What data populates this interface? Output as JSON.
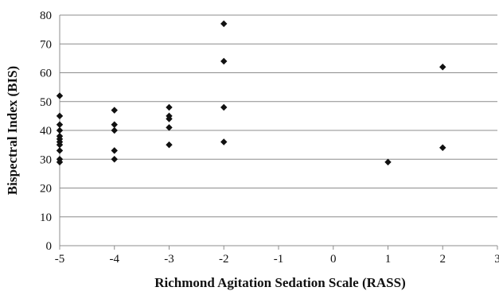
{
  "chart_data": {
    "type": "scatter",
    "title": "",
    "xlabel": "Richmond Agitation Sedation Scale (RASS)",
    "ylabel": "Bispectral Index (BIS)",
    "xlim": [
      -5,
      3
    ],
    "ylim": [
      0,
      80
    ],
    "xticks": [
      "-5",
      "-4",
      "-3",
      "-2",
      "-1",
      "0",
      "1",
      "2",
      "3"
    ],
    "yticks": [
      "0",
      "10",
      "20",
      "30",
      "40",
      "50",
      "60",
      "70",
      "80"
    ],
    "grid": "horizontal",
    "legend": "none",
    "marker": "diamond",
    "marker_color": "#111111",
    "points": [
      {
        "x": -5,
        "y": 52
      },
      {
        "x": -5,
        "y": 45
      },
      {
        "x": -5,
        "y": 42
      },
      {
        "x": -5,
        "y": 40
      },
      {
        "x": -5,
        "y": 38
      },
      {
        "x": -5,
        "y": 37
      },
      {
        "x": -5,
        "y": 36
      },
      {
        "x": -5,
        "y": 35
      },
      {
        "x": -5,
        "y": 33
      },
      {
        "x": -5,
        "y": 30
      },
      {
        "x": -5,
        "y": 29
      },
      {
        "x": -4,
        "y": 47
      },
      {
        "x": -4,
        "y": 42
      },
      {
        "x": -4,
        "y": 40
      },
      {
        "x": -4,
        "y": 33
      },
      {
        "x": -4,
        "y": 30
      },
      {
        "x": -3,
        "y": 48
      },
      {
        "x": -3,
        "y": 45
      },
      {
        "x": -3,
        "y": 44
      },
      {
        "x": -3,
        "y": 41
      },
      {
        "x": -3,
        "y": 35
      },
      {
        "x": -2,
        "y": 77
      },
      {
        "x": -2,
        "y": 64
      },
      {
        "x": -2,
        "y": 48
      },
      {
        "x": -2,
        "y": 36
      },
      {
        "x": 1,
        "y": 29
      },
      {
        "x": 2,
        "y": 62
      },
      {
        "x": 2,
        "y": 34
      }
    ]
  }
}
